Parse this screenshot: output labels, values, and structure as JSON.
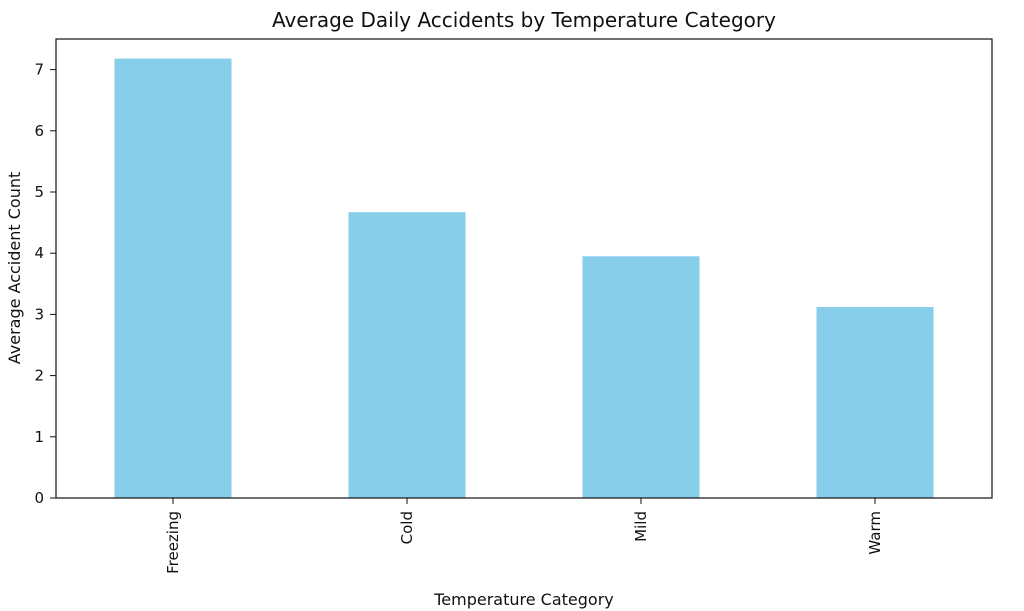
{
  "chart_data": {
    "type": "bar",
    "title": "Average Daily Accidents by Temperature Category",
    "xlabel": "Temperature Category",
    "ylabel": "Average Accident Count",
    "categories": [
      "Freezing",
      "Cold",
      "Mild",
      "Warm"
    ],
    "values": [
      7.18,
      4.67,
      3.95,
      3.12
    ],
    "ylim": [
      0,
      7.5
    ],
    "yticks": [
      0,
      1,
      2,
      3,
      4,
      5,
      6,
      7
    ],
    "grid": false,
    "legend": "none",
    "bar_color": "#87CEEB",
    "axis_color": "#111111"
  }
}
